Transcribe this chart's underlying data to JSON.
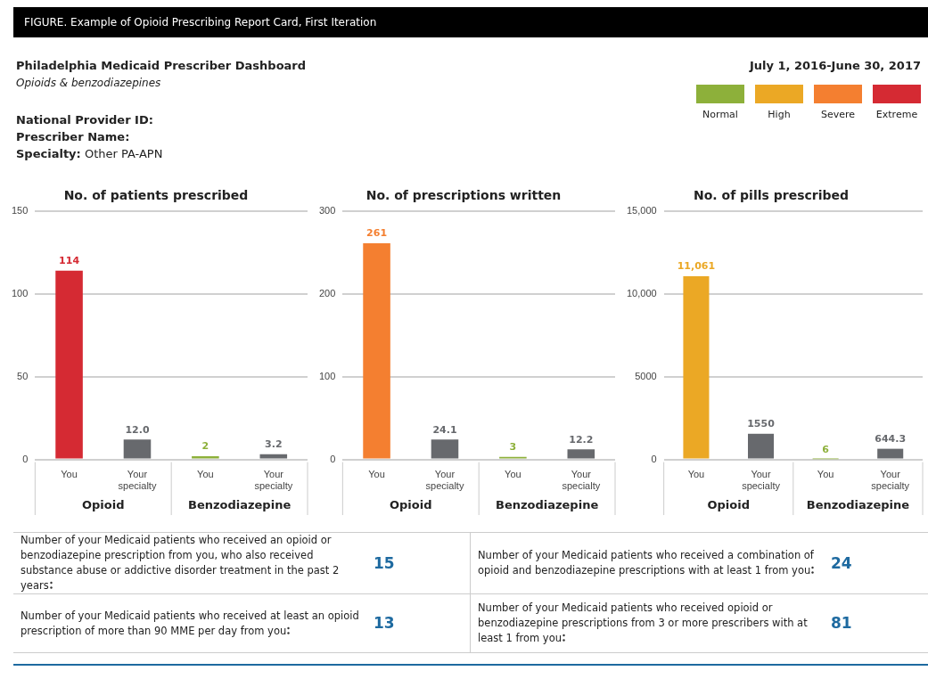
{
  "chart_data": [
    {
      "type": "other",
      "title": "FIGURE. Example of Opioid Prescribing Report Card, First Iteration",
      "subtitle": "Philadelphia Medicaid Prescriber Dashboard",
      "annotations": [
        "Opioids & benzodiazepines",
        "National Provider ID:",
        "Prescriber Name:",
        "Specialty: Other PA-APN",
        "July 1, 2016-June 30, 2017"
      ],
      "categories": [
        "Normal",
        "High",
        "Severe",
        "Extreme"
      ],
      "colors": [
        "#8db03a",
        "#eba825",
        "#f47f30",
        "#d52a33"
      ]
    },
    {
      "type": "bar",
      "title": "No. of patients prescribed",
      "categories": [
        "You",
        "Your specialty",
        "You",
        "Your specialty"
      ],
      "values": [
        114,
        12.0,
        2,
        3.2
      ],
      "value_labels": [
        "114",
        "12.0",
        "2",
        "3.2"
      ],
      "colors": [
        "#d52a33",
        "#67696d",
        "#8db03a",
        "#67696d"
      ],
      "ylim": [
        0,
        150
      ],
      "yticks": [
        0,
        50,
        100,
        150
      ],
      "grid": "y",
      "annotations": [
        "Opioid",
        "Benzodiazepine"
      ]
    },
    {
      "type": "bar",
      "title": "No. of prescriptions written",
      "categories": [
        "You",
        "Your specialty",
        "You",
        "Your specialty"
      ],
      "values": [
        261,
        24.1,
        3,
        12.2
      ],
      "value_labels": [
        "261",
        "24.1",
        "3",
        "12.2"
      ],
      "colors": [
        "#f47f30",
        "#67696d",
        "#8db03a",
        "#67696d"
      ],
      "ylim": [
        0,
        300
      ],
      "yticks": [
        0,
        100,
        200,
        300
      ],
      "grid": "y",
      "annotations": [
        "Opioid",
        "Benzodiazepine"
      ]
    },
    {
      "type": "bar",
      "title": "No. of pills prescribed",
      "categories": [
        "You",
        "Your specialty",
        "You",
        "Your specialty"
      ],
      "values": [
        11061,
        1550,
        6,
        644.3
      ],
      "value_labels": [
        "11,061",
        "1550",
        "6",
        "644.3"
      ],
      "colors": [
        "#eba825",
        "#67696d",
        "#8db03a",
        "#67696d"
      ],
      "ylim": [
        0,
        15000
      ],
      "yticks": [
        0,
        {
          "value": 5000,
          "label": "5000"
        },
        {
          "value": 10000,
          "label": "10,000"
        },
        {
          "value": 15000,
          "label": "15,000"
        }
      ],
      "grid": "y",
      "annotations": [
        "Opioid",
        "Benzodiazepine"
      ]
    },
    {
      "type": "other",
      "categories": [
        "Number of your Medicaid patients who received an opioid or benzodiazepine prescription from you, who also received substance abuse or addictive disorder treatment in the past 2 years",
        "Number of your Medicaid patients who received a combination of opioid and benzodiazepine prescriptions with at least 1 from you",
        "Number of your Medicaid patients who received at least an opioid prescription of more than 90 MME per day from you",
        "Number of your Medicaid patients who received opioid or benzodiazepine prescriptions from 3 or more prescribers with at least 1 from you"
      ],
      "values": [
        15,
        24,
        13,
        81
      ],
      "data_labels": true
    }
  ]
}
